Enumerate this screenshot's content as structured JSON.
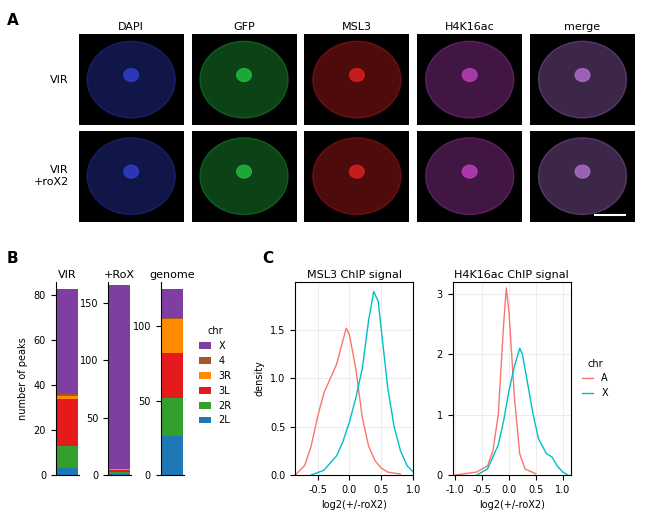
{
  "panel_labels": [
    "A",
    "B",
    "C"
  ],
  "image_panel": {
    "columns": [
      "DAPI",
      "GFP",
      "MSL3",
      "H4K16ac",
      "merge"
    ],
    "rows": [
      "VIR",
      "VIR\n+roX2"
    ]
  },
  "chart_data": [
    {
      "type": "bar",
      "stacked": true,
      "ylabel": "number of peaks",
      "legend_title": "chr",
      "legend": "right",
      "categories": [
        "VIR",
        "+RoX",
        "genome"
      ],
      "ylims": [
        [
          0,
          86
        ],
        [
          0,
          168
        ],
        [
          0,
          130
        ]
      ],
      "yticks": [
        [
          0,
          20,
          40,
          60,
          80
        ],
        [
          0,
          50,
          100,
          150
        ],
        [
          0,
          50,
          100
        ]
      ],
      "series": [
        {
          "name": "X",
          "color": "#7E3FA0",
          "values": [
            47,
            160,
            19
          ]
        },
        {
          "name": "4",
          "color": "#A65628",
          "values": [
            1,
            0,
            1
          ]
        },
        {
          "name": "3R",
          "color": "#FF8C00",
          "values": [
            1,
            1,
            23
          ]
        },
        {
          "name": "3L",
          "color": "#E41A1C",
          "values": [
            21,
            1,
            30
          ]
        },
        {
          "name": "2R",
          "color": "#33A02C",
          "values": [
            10,
            2,
            26
          ]
        },
        {
          "name": "2L",
          "color": "#1F78B4",
          "values": [
            3,
            1,
            26
          ]
        }
      ]
    },
    {
      "type": "line",
      "title": "MSL3 ChIP signal",
      "xlabel": "log2(+/-roX2)",
      "ylabel": "density",
      "xlim": [
        -0.85,
        1.0
      ],
      "ylim": [
        0,
        2.0
      ],
      "xticks": [
        -0.5,
        {
          "value": 0,
          "label": "0.0"
        },
        0.5,
        1.0
      ],
      "yticks": [
        0.0,
        0.5,
        1.0,
        1.5
      ],
      "series": [
        {
          "name": "A",
          "color": "#F8766D",
          "x": [
            -0.85,
            -0.7,
            -0.6,
            -0.5,
            -0.4,
            -0.3,
            -0.2,
            -0.1,
            -0.05,
            0.0,
            0.1,
            0.2,
            0.3,
            0.4,
            0.5,
            0.6,
            0.8
          ],
          "values": [
            0.0,
            0.1,
            0.3,
            0.6,
            0.85,
            1.0,
            1.15,
            1.4,
            1.52,
            1.45,
            1.1,
            0.6,
            0.3,
            0.15,
            0.07,
            0.03,
            0.01
          ]
        },
        {
          "name": "X",
          "color": "#00BFC4",
          "x": [
            -0.6,
            -0.4,
            -0.2,
            -0.1,
            0.0,
            0.1,
            0.2,
            0.3,
            0.38,
            0.45,
            0.5,
            0.6,
            0.7,
            0.8,
            0.9,
            1.0
          ],
          "values": [
            0.0,
            0.05,
            0.2,
            0.35,
            0.55,
            0.8,
            1.1,
            1.6,
            1.9,
            1.8,
            1.5,
            0.9,
            0.5,
            0.25,
            0.1,
            0.03
          ]
        }
      ]
    },
    {
      "type": "line",
      "title": "H4K16ac ChIP signal",
      "xlabel": "log2(+/-roX2)",
      "legend_title": "chr",
      "legend": "right",
      "xlim": [
        -1.05,
        1.15
      ],
      "ylim": [
        0,
        3.2
      ],
      "xticks": [
        -1.0,
        -0.5,
        {
          "value": 0,
          "label": "0.0"
        },
        0.5,
        1.0
      ],
      "yticks": [
        0,
        1,
        2,
        3
      ],
      "series": [
        {
          "name": "A",
          "color": "#F8766D",
          "x": [
            -1.0,
            -0.6,
            -0.4,
            -0.3,
            -0.2,
            -0.1,
            -0.05,
            0.0,
            0.1,
            0.2,
            0.3,
            0.5
          ],
          "values": [
            0.0,
            0.05,
            0.15,
            0.4,
            1.0,
            2.5,
            3.1,
            2.7,
            1.3,
            0.35,
            0.1,
            0.02
          ]
        },
        {
          "name": "X",
          "color": "#00BFC4",
          "x": [
            -0.6,
            -0.4,
            -0.2,
            -0.1,
            0.0,
            0.1,
            0.2,
            0.25,
            0.35,
            0.45,
            0.55,
            0.7,
            0.8,
            0.9,
            1.0,
            1.1
          ],
          "values": [
            0.0,
            0.1,
            0.5,
            0.9,
            1.4,
            1.8,
            2.1,
            2.0,
            1.5,
            1.0,
            0.6,
            0.35,
            0.3,
            0.15,
            0.05,
            0.0
          ]
        }
      ]
    }
  ]
}
